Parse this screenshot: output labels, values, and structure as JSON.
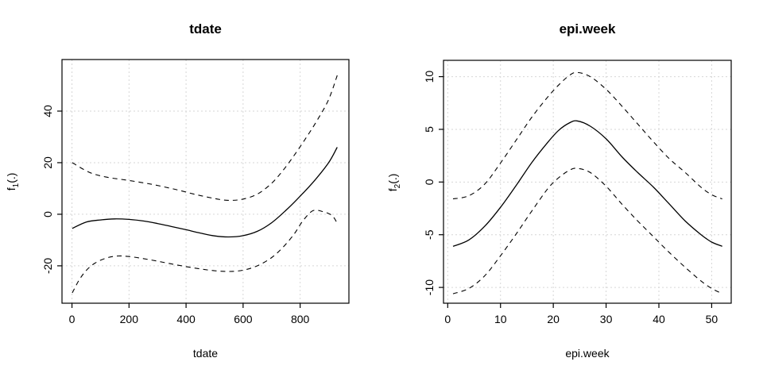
{
  "figure": {
    "background": "#ffffff",
    "line_color": "#000000",
    "grid_color": "#d6d6d6"
  },
  "chart_data": [
    {
      "type": "line",
      "title": "tdate",
      "xlabel": "tdate",
      "ylabel": "f1(.)",
      "ylabel_parts": {
        "base": "f",
        "sub": "1",
        "rest": "(.)"
      },
      "xlim": [
        -35,
        971
      ],
      "ylim": [
        -34.5,
        60
      ],
      "xticks": [
        0,
        200,
        400,
        600,
        800
      ],
      "yticks": [
        -20,
        0,
        20,
        40
      ],
      "grid": true,
      "legend": "none",
      "series": [
        {
          "name": "smooth-estimate",
          "style": "solid",
          "points": [
            [
              1,
              -5.5
            ],
            [
              50,
              -3.0
            ],
            [
              100,
              -2.2
            ],
            [
              150,
              -1.8
            ],
            [
              200,
              -2.0
            ],
            [
              250,
              -2.6
            ],
            [
              300,
              -3.6
            ],
            [
              350,
              -4.8
            ],
            [
              400,
              -6.0
            ],
            [
              450,
              -7.3
            ],
            [
              500,
              -8.4
            ],
            [
              550,
              -8.8
            ],
            [
              600,
              -8.3
            ],
            [
              650,
              -6.6
            ],
            [
              700,
              -3.3
            ],
            [
              750,
              1.5
            ],
            [
              800,
              7.0
            ],
            [
              850,
              13.0
            ],
            [
              900,
              20.0
            ],
            [
              930,
              26.0
            ]
          ]
        },
        {
          "name": "upper-confidence-band",
          "style": "dashed",
          "points": [
            [
              1,
              20.0
            ],
            [
              60,
              16.3
            ],
            [
              120,
              14.4
            ],
            [
              200,
              13.1
            ],
            [
              280,
              11.6
            ],
            [
              360,
              9.7
            ],
            [
              440,
              7.5
            ],
            [
              520,
              5.7
            ],
            [
              560,
              5.4
            ],
            [
              600,
              5.9
            ],
            [
              650,
              7.8
            ],
            [
              700,
              12.0
            ],
            [
              740,
              17.0
            ],
            [
              780,
              23.0
            ],
            [
              820,
              29.5
            ],
            [
              860,
              36.5
            ],
            [
              900,
              44.5
            ],
            [
              932,
              54.5
            ]
          ]
        },
        {
          "name": "lower-confidence-band",
          "style": "dashed",
          "points": [
            [
              1,
              -30.5
            ],
            [
              25,
              -25.5
            ],
            [
              50,
              -21.8
            ],
            [
              80,
              -19.0
            ],
            [
              120,
              -17.0
            ],
            [
              160,
              -16.2
            ],
            [
              200,
              -16.4
            ],
            [
              250,
              -17.2
            ],
            [
              300,
              -18.2
            ],
            [
              350,
              -19.3
            ],
            [
              400,
              -20.3
            ],
            [
              450,
              -21.2
            ],
            [
              500,
              -21.9
            ],
            [
              550,
              -22.2
            ],
            [
              600,
              -21.7
            ],
            [
              650,
              -20.0
            ],
            [
              700,
              -16.8
            ],
            [
              740,
              -12.8
            ],
            [
              780,
              -7.5
            ],
            [
              810,
              -2.5
            ],
            [
              845,
              1.4
            ],
            [
              880,
              1.0
            ],
            [
              912,
              -0.5
            ],
            [
              930,
              -3.5
            ]
          ]
        }
      ]
    },
    {
      "type": "line",
      "title": "epi.week",
      "xlabel": "epi.week",
      "ylabel": "f2(.)",
      "ylabel_parts": {
        "base": "f",
        "sub": "2",
        "rest": "(.)"
      },
      "xlim": [
        -0.8,
        53.7
      ],
      "ylim": [
        -11.5,
        11.55
      ],
      "xticks": [
        0,
        10,
        20,
        30,
        40,
        50
      ],
      "yticks": [
        -10,
        -5,
        0,
        5,
        10
      ],
      "grid": true,
      "legend": "none",
      "series": [
        {
          "name": "smooth-estimate",
          "style": "solid",
          "points": [
            [
              1,
              -6.1
            ],
            [
              4,
              -5.5
            ],
            [
              7,
              -4.2
            ],
            [
              10,
              -2.4
            ],
            [
              13,
              -0.3
            ],
            [
              16,
              1.9
            ],
            [
              19,
              3.8
            ],
            [
              21,
              4.9
            ],
            [
              23,
              5.6
            ],
            [
              24.5,
              5.8
            ],
            [
              27,
              5.3
            ],
            [
              30,
              4.1
            ],
            [
              33,
              2.4
            ],
            [
              36,
              0.9
            ],
            [
              39,
              -0.5
            ],
            [
              42,
              -2.1
            ],
            [
              45,
              -3.7
            ],
            [
              48,
              -5.0
            ],
            [
              50,
              -5.7
            ],
            [
              52,
              -6.1
            ]
          ]
        },
        {
          "name": "upper-confidence-band",
          "style": "dashed",
          "points": [
            [
              1,
              -1.6
            ],
            [
              4,
              -1.3
            ],
            [
              7,
              -0.2
            ],
            [
              10,
              1.8
            ],
            [
              13,
              4.0
            ],
            [
              16,
              6.2
            ],
            [
              19,
              8.1
            ],
            [
              21,
              9.2
            ],
            [
              23,
              10.1
            ],
            [
              24.5,
              10.4
            ],
            [
              27,
              10.0
            ],
            [
              30,
              8.8
            ],
            [
              33,
              7.2
            ],
            [
              36,
              5.5
            ],
            [
              39,
              3.8
            ],
            [
              42,
              2.2
            ],
            [
              45,
              0.9
            ],
            [
              48,
              -0.5
            ],
            [
              50,
              -1.2
            ],
            [
              52,
              -1.6
            ]
          ]
        },
        {
          "name": "lower-confidence-band",
          "style": "dashed",
          "points": [
            [
              1,
              -10.6
            ],
            [
              4,
              -10.1
            ],
            [
              7,
              -8.9
            ],
            [
              10,
              -7.0
            ],
            [
              13,
              -4.9
            ],
            [
              16,
              -2.7
            ],
            [
              19,
              -0.6
            ],
            [
              21,
              0.4
            ],
            [
              23,
              1.1
            ],
            [
              24.5,
              1.3
            ],
            [
              27,
              0.9
            ],
            [
              30,
              -0.4
            ],
            [
              33,
              -2.1
            ],
            [
              36,
              -3.7
            ],
            [
              39,
              -5.2
            ],
            [
              42,
              -6.7
            ],
            [
              45,
              -8.1
            ],
            [
              48,
              -9.4
            ],
            [
              50,
              -10.1
            ],
            [
              52,
              -10.6
            ]
          ]
        }
      ]
    }
  ]
}
